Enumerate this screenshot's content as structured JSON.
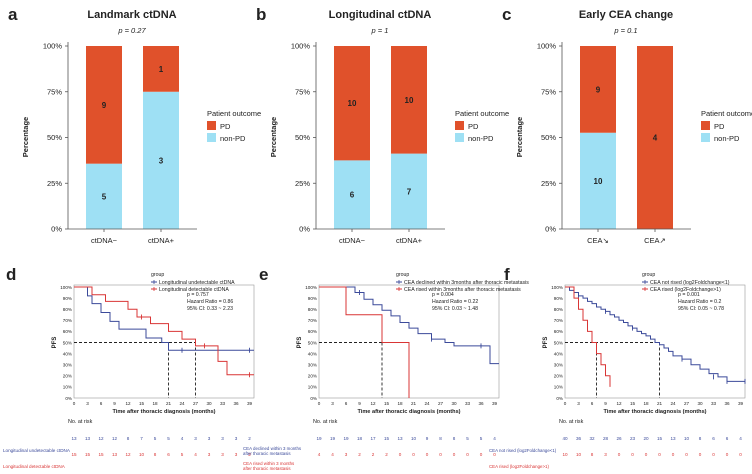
{
  "colors": {
    "pd": "#e0512b",
    "nonpd": "#9ee0f4",
    "blue": "#3b4a9a",
    "red": "#d93535",
    "axis": "#555555",
    "text": "#222222"
  },
  "legend": {
    "title": "Patient outcome",
    "pd": "PD",
    "nonpd": "non-PD"
  },
  "ylabel_pct": "Percentage",
  "chart_data": [
    {
      "type": "bar",
      "stacked": true,
      "panel_label": "a",
      "title": "Landmark ctDNA",
      "pvalue": "p = 0.27",
      "ylabel": "Percentage",
      "yticks": [
        "0%",
        "25%",
        "50%",
        "75%",
        "100%"
      ],
      "ylim": [
        0,
        100
      ],
      "categories": [
        "ctDNA−",
        "ctDNA+"
      ],
      "series": [
        {
          "name": "non-PD",
          "counts": [
            5,
            3
          ],
          "values": [
            35.7,
            75.0
          ]
        },
        {
          "name": "PD",
          "counts": [
            9,
            1
          ],
          "values": [
            64.3,
            25.0
          ]
        }
      ]
    },
    {
      "type": "bar",
      "stacked": true,
      "panel_label": "b",
      "title": "Longitudinal ctDNA",
      "pvalue": "p = 1",
      "ylabel": "Percentage",
      "yticks": [
        "0%",
        "25%",
        "50%",
        "75%",
        "100%"
      ],
      "ylim": [
        0,
        100
      ],
      "categories": [
        "ctDNA−",
        "ctDNA+"
      ],
      "series": [
        {
          "name": "non-PD",
          "counts": [
            6,
            7
          ],
          "values": [
            37.5,
            41.2
          ]
        },
        {
          "name": "PD",
          "counts": [
            10,
            10
          ],
          "values": [
            62.5,
            58.8
          ]
        }
      ]
    },
    {
      "type": "bar",
      "stacked": true,
      "panel_label": "c",
      "title": "Early CEA change",
      "pvalue": "p = 0.1",
      "ylabel": "Percentage",
      "yticks": [
        "0%",
        "25%",
        "50%",
        "75%",
        "100%"
      ],
      "ylim": [
        0,
        100
      ],
      "categories": [
        "CEA↘",
        "CEA↗"
      ],
      "series": [
        {
          "name": "non-PD",
          "counts": [
            10,
            0
          ],
          "values": [
            52.6,
            0
          ]
        },
        {
          "name": "PD",
          "counts": [
            9,
            4
          ],
          "values": [
            47.4,
            100
          ]
        }
      ]
    },
    {
      "type": "line",
      "subtype": "kaplan-meier",
      "panel_label": "d",
      "ylabel": "PFS",
      "xlabel": "Time after thoracic diagnosis (months)",
      "xticks": [
        0,
        3,
        6,
        9,
        12,
        15,
        18,
        21,
        24,
        27,
        30,
        33,
        36,
        39
      ],
      "xlim": [
        0,
        40
      ],
      "yticks": [
        "0%",
        "10%",
        "20%",
        "30%",
        "40%",
        "50%",
        "60%",
        "70%",
        "80%",
        "90%",
        "100%"
      ],
      "legend_title": "group",
      "stats": [
        "p = 0.757",
        "Hazard Ratio = 0.86",
        "95% CI: 0.33 ~ 2.23"
      ],
      "medians": [
        21,
        27
      ],
      "series": [
        {
          "name": "Longitudinal undetectable ctDNA",
          "color": "blue",
          "x": [
            0,
            3,
            4,
            6,
            8,
            10,
            13,
            16,
            18,
            19.5,
            21,
            24,
            40
          ],
          "y": [
            100,
            92,
            85,
            77,
            69,
            62,
            62,
            54,
            54,
            50,
            43,
            43,
            43
          ],
          "censor_x": [
            24,
            39
          ],
          "censor_y": [
            43,
            43
          ],
          "risk": [
            "13",
            "13",
            "12",
            "12",
            "8",
            "7",
            "5",
            "5",
            "4",
            "3",
            "3",
            "3",
            "3",
            "2"
          ]
        },
        {
          "name": "Longitudinal detectable ctDNA",
          "color": "red",
          "x": [
            0,
            4,
            7,
            12,
            14,
            17,
            21,
            24,
            27,
            32,
            34,
            40
          ],
          "y": [
            100,
            93,
            87,
            80,
            73,
            67,
            60,
            53,
            47,
            33,
            21,
            21
          ],
          "censor_x": [
            15,
            29,
            39
          ],
          "censor_y": [
            73,
            47,
            21
          ],
          "risk": [
            "15",
            "15",
            "15",
            "13",
            "12",
            "10",
            "8",
            "6",
            "5",
            "4",
            "3",
            "3",
            "3",
            "2"
          ]
        }
      ],
      "risk_title": "No. at risk",
      "risk_labels": [
        "Longitudinal undetectable ctDNA",
        "Longitudinal detectable ctDNA"
      ]
    },
    {
      "type": "line",
      "subtype": "kaplan-meier",
      "panel_label": "e",
      "ylabel": "PFS",
      "xlabel": "Time after thoracic diagnosis (months)",
      "xticks": [
        0,
        3,
        6,
        9,
        12,
        15,
        18,
        21,
        24,
        27,
        30,
        33,
        36,
        39
      ],
      "xlim": [
        0,
        40
      ],
      "yticks": [
        "0%",
        "10%",
        "20%",
        "30%",
        "40%",
        "50%",
        "60%",
        "70%",
        "80%",
        "90%",
        "100%"
      ],
      "legend_title": "group",
      "stats": [
        "p = 0.004",
        "Hazard Ratio = 0.22",
        "95% CI: 0.03 ~ 1.48"
      ],
      "medians": [
        14,
        20
      ],
      "series": [
        {
          "name": "CEA declined within 3months after thoracic metastasis",
          "color": "blue",
          "x": [
            0,
            5,
            8,
            10,
            12,
            14,
            16,
            18,
            20,
            22,
            25,
            28,
            30,
            38,
            40
          ],
          "y": [
            100,
            100,
            95,
            89,
            84,
            79,
            74,
            68,
            63,
            58,
            53,
            50,
            47,
            31,
            31
          ],
          "censor_x": [
            9,
            25,
            36
          ],
          "censor_y": [
            95,
            53,
            47
          ],
          "risk": [
            "19",
            "19",
            "19",
            "18",
            "17",
            "15",
            "13",
            "10",
            "9",
            "8",
            "8",
            "5",
            "5",
            "4"
          ]
        },
        {
          "name": "CEA rised within 3months after thoracic metastasis",
          "color": "red",
          "x": [
            0,
            3,
            6,
            14,
            18,
            20
          ],
          "y": [
            100,
            100,
            75,
            50,
            50,
            0
          ],
          "censor_x": [],
          "censor_y": [],
          "risk": [
            "4",
            "4",
            "3",
            "2",
            "2",
            "2",
            "0",
            "0",
            "0",
            "0",
            "0",
            "0",
            "0",
            "0"
          ]
        }
      ],
      "risk_title": "No. at risk",
      "risk_labels": [
        "CEA declined within 3 months after thoracic metastasis",
        "CEA rised within 3 months after thoracic metastasis"
      ]
    },
    {
      "type": "line",
      "subtype": "kaplan-meier",
      "panel_label": "f",
      "ylabel": "PFS",
      "xlabel": "Time after thoracic diagnosis (months)",
      "xticks": [
        0,
        3,
        6,
        9,
        12,
        15,
        18,
        21,
        24,
        27,
        30,
        33,
        36,
        39
      ],
      "xlim": [
        0,
        40
      ],
      "yticks": [
        "0%",
        "10%",
        "20%",
        "30%",
        "40%",
        "50%",
        "60%",
        "70%",
        "80%",
        "90%",
        "100%"
      ],
      "legend_title": "group",
      "stats": [
        "p = 0.001",
        "Hazard Ratio = 0.2",
        "95% CI: 0.05 ~ 0.78"
      ],
      "medians": [
        7,
        21
      ],
      "series": [
        {
          "name": "CEA not rised (log2Foldchange<1)",
          "color": "blue",
          "x": [
            0,
            1,
            2,
            3,
            4,
            5,
            6,
            7,
            8,
            9,
            10,
            11,
            12,
            13,
            14,
            15,
            16,
            17,
            18,
            19,
            20,
            21,
            22,
            23,
            24,
            26,
            28,
            30,
            32,
            34,
            36,
            40
          ],
          "y": [
            100,
            97,
            95,
            92,
            90,
            87,
            85,
            82,
            80,
            78,
            75,
            73,
            70,
            68,
            65,
            63,
            60,
            58,
            56,
            53,
            50,
            48,
            45,
            42,
            38,
            35,
            30,
            26,
            22,
            19,
            15,
            15
          ],
          "censor_x": [
            3,
            9,
            15,
            26,
            33,
            36,
            40
          ],
          "censor_y": [
            92,
            78,
            63,
            35,
            19,
            15,
            15
          ],
          "risk": [
            "40",
            "36",
            "32",
            "28",
            "26",
            "23",
            "20",
            "15",
            "13",
            "10",
            "8",
            "6",
            "6",
            "4"
          ]
        },
        {
          "name": "CEA rised (log2Foldchange>1)",
          "color": "red",
          "x": [
            0,
            2,
            3,
            4,
            5,
            6,
            7,
            8,
            9,
            10
          ],
          "y": [
            100,
            90,
            80,
            70,
            60,
            50,
            40,
            30,
            20,
            10
          ],
          "censor_x": [],
          "censor_y": [],
          "risk": [
            "10",
            "10",
            "8",
            "3",
            "0",
            "0",
            "0",
            "0",
            "0",
            "0",
            "0",
            "0",
            "0",
            "0"
          ]
        }
      ],
      "risk_title": "No. at risk",
      "risk_labels": [
        "CEA not rised (log2Foldchange<1)",
        "CEA rised (log2Foldchange>1)"
      ]
    }
  ]
}
